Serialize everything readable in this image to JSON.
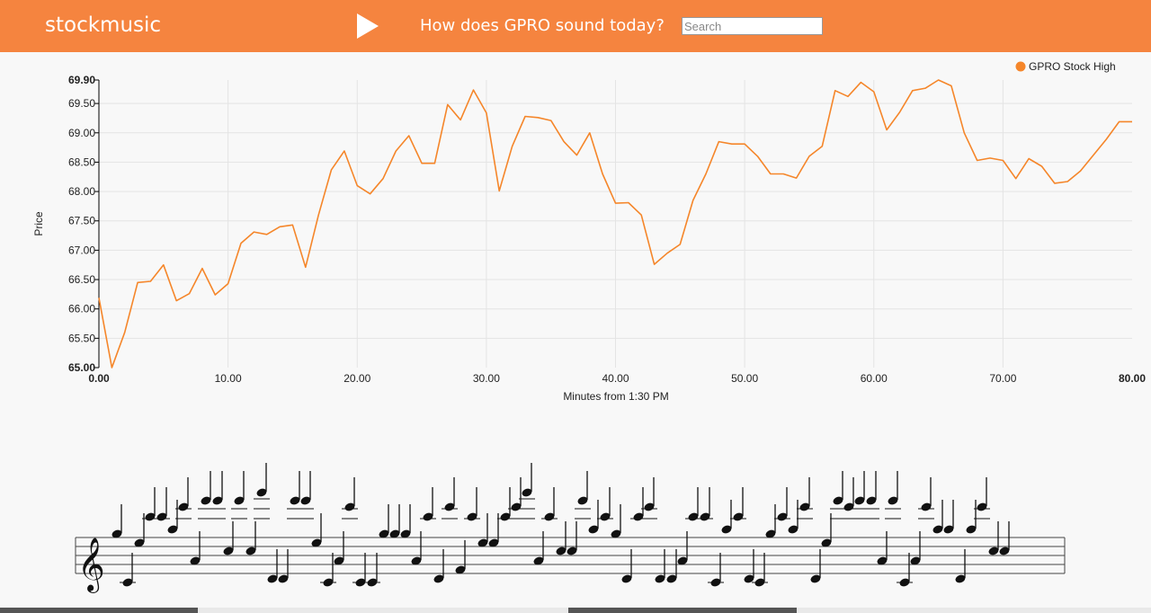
{
  "header": {
    "brand": "stockmusic",
    "headline": "How does GPRO sound today?",
    "search_placeholder": "Search"
  },
  "colors": {
    "brand": "#f5843f",
    "series": "#f5862a",
    "grid": "#e4e4e4",
    "notes": "#111111"
  },
  "icons": {
    "play": "play-icon"
  },
  "chart_data": {
    "type": "line",
    "title": "",
    "xlabel": "Minutes from 1:30 PM",
    "ylabel": "Price",
    "xlim": [
      0,
      80
    ],
    "ylim": [
      65,
      69.9
    ],
    "x_ticks": [
      "0.00",
      "10.00",
      "20.00",
      "30.00",
      "40.00",
      "50.00",
      "60.00",
      "70.00",
      "80.00"
    ],
    "y_ticks": [
      "65.00",
      "65.50",
      "66.00",
      "66.50",
      "67.00",
      "67.50",
      "68.00",
      "68.50",
      "69.00",
      "69.50",
      "69.90"
    ],
    "grid": true,
    "legend": "top-right",
    "series": [
      {
        "name": "GPRO Stock High",
        "x": [
          0,
          1,
          2,
          3,
          4,
          5,
          6,
          7,
          8,
          9,
          10,
          11,
          12,
          13,
          14,
          15,
          16,
          17,
          18,
          19,
          20,
          21,
          22,
          23,
          24,
          25,
          26,
          27,
          28,
          29,
          30,
          31,
          32,
          33,
          34,
          35,
          36,
          37,
          38,
          39,
          40,
          41,
          42,
          43,
          44,
          45,
          46,
          47,
          48,
          49,
          50,
          51,
          52,
          53,
          54,
          55,
          56,
          57,
          58,
          59,
          60,
          61,
          62,
          63,
          64,
          65,
          66,
          67,
          68,
          69,
          70,
          71,
          72,
          73,
          74,
          75,
          76,
          77,
          78,
          79,
          80
        ],
        "values": [
          66.19,
          65.0,
          65.6,
          66.45,
          66.47,
          66.75,
          66.14,
          66.26,
          66.69,
          66.24,
          66.43,
          67.12,
          67.31,
          67.27,
          67.4,
          67.43,
          66.71,
          67.6,
          68.37,
          68.69,
          68.1,
          67.96,
          68.22,
          68.69,
          68.95,
          68.48,
          68.48,
          69.48,
          69.22,
          69.73,
          69.34,
          68.01,
          68.77,
          69.28,
          69.26,
          69.21,
          68.85,
          68.62,
          69.0,
          68.3,
          67.8,
          67.81,
          67.6,
          66.76,
          66.95,
          67.1,
          67.85,
          68.3,
          68.85,
          68.81,
          68.81,
          68.6,
          68.3,
          68.3,
          68.23,
          68.6,
          68.77,
          69.72,
          69.62,
          69.86,
          69.7,
          69.05,
          69.35,
          69.72,
          69.76,
          69.9,
          69.8,
          69.0,
          68.53,
          68.57,
          68.53,
          68.22,
          68.56,
          68.43,
          68.14,
          68.17,
          68.35,
          68.62,
          68.89,
          69.19,
          69.19
        ]
      }
    ]
  },
  "music": {
    "clef": "𝄞",
    "notes": [
      {
        "x": 130,
        "y": 594,
        "stem": "up",
        "ledgers": []
      },
      {
        "x": 142,
        "y": 648,
        "stem": "up",
        "ledgers": [
          648
        ]
      },
      {
        "x": 155,
        "y": 604,
        "stem": "up",
        "ledgers": []
      },
      {
        "x": 167,
        "y": 575,
        "stem": "up",
        "ledgers": [
          577
        ]
      },
      {
        "x": 180,
        "y": 575,
        "stem": "up",
        "ledgers": [
          577
        ]
      },
      {
        "x": 192,
        "y": 589,
        "stem": "up",
        "ledgers": []
      },
      {
        "x": 204,
        "y": 564,
        "stem": "up",
        "ledgers": [
          566,
          577
        ]
      },
      {
        "x": 217,
        "y": 624,
        "stem": "up",
        "ledgers": []
      },
      {
        "x": 229,
        "y": 557,
        "stem": "up",
        "ledgers": [
          566,
          577
        ]
      },
      {
        "x": 242,
        "y": 557,
        "stem": "up",
        "ledgers": [
          566,
          577
        ]
      },
      {
        "x": 254,
        "y": 613,
        "stem": "up",
        "ledgers": []
      },
      {
        "x": 266,
        "y": 557,
        "stem": "up",
        "ledgers": [
          566,
          577
        ]
      },
      {
        "x": 279,
        "y": 613,
        "stem": "up",
        "ledgers": []
      },
      {
        "x": 291,
        "y": 548,
        "stem": "up",
        "ledgers": [
          555,
          566,
          577
        ]
      },
      {
        "x": 303,
        "y": 644,
        "stem": "up",
        "ledgers": []
      },
      {
        "x": 315,
        "y": 644,
        "stem": "up",
        "ledgers": []
      },
      {
        "x": 328,
        "y": 557,
        "stem": "up",
        "ledgers": [
          566,
          577
        ]
      },
      {
        "x": 340,
        "y": 557,
        "stem": "up",
        "ledgers": [
          566,
          577
        ]
      },
      {
        "x": 352,
        "y": 604,
        "stem": "up",
        "ledgers": []
      },
      {
        "x": 365,
        "y": 648,
        "stem": "up",
        "ledgers": [
          648
        ]
      },
      {
        "x": 377,
        "y": 624,
        "stem": "up",
        "ledgers": []
      },
      {
        "x": 389,
        "y": 564,
        "stem": "up",
        "ledgers": [
          566,
          577
        ]
      },
      {
        "x": 401,
        "y": 648,
        "stem": "up",
        "ledgers": [
          648
        ]
      },
      {
        "x": 414,
        "y": 648,
        "stem": "up",
        "ledgers": [
          648
        ]
      },
      {
        "x": 427,
        "y": 594,
        "stem": "up",
        "ledgers": []
      },
      {
        "x": 439,
        "y": 594,
        "stem": "up",
        "ledgers": []
      },
      {
        "x": 451,
        "y": 594,
        "stem": "up",
        "ledgers": []
      },
      {
        "x": 463,
        "y": 624,
        "stem": "up",
        "ledgers": []
      },
      {
        "x": 476,
        "y": 575,
        "stem": "up",
        "ledgers": [
          577
        ]
      },
      {
        "x": 488,
        "y": 644,
        "stem": "up",
        "ledgers": []
      },
      {
        "x": 500,
        "y": 564,
        "stem": "up",
        "ledgers": [
          566,
          577
        ]
      },
      {
        "x": 512,
        "y": 634,
        "stem": "up",
        "ledgers": []
      },
      {
        "x": 525,
        "y": 575,
        "stem": "up",
        "ledgers": [
          577
        ]
      },
      {
        "x": 537,
        "y": 604,
        "stem": "up",
        "ledgers": []
      },
      {
        "x": 549,
        "y": 604,
        "stem": "up",
        "ledgers": []
      },
      {
        "x": 562,
        "y": 575,
        "stem": "up",
        "ledgers": [
          577
        ]
      },
      {
        "x": 574,
        "y": 564,
        "stem": "up",
        "ledgers": [
          566,
          577
        ]
      },
      {
        "x": 586,
        "y": 548,
        "stem": "up",
        "ledgers": [
          555,
          566,
          577
        ]
      },
      {
        "x": 599,
        "y": 624,
        "stem": "up",
        "ledgers": []
      },
      {
        "x": 611,
        "y": 575,
        "stem": "up",
        "ledgers": [
          577
        ]
      },
      {
        "x": 624,
        "y": 613,
        "stem": "up",
        "ledgers": []
      },
      {
        "x": 636,
        "y": 613,
        "stem": "up",
        "ledgers": []
      },
      {
        "x": 648,
        "y": 557,
        "stem": "up",
        "ledgers": [
          566,
          577
        ]
      },
      {
        "x": 660,
        "y": 589,
        "stem": "up",
        "ledgers": []
      },
      {
        "x": 673,
        "y": 575,
        "stem": "up",
        "ledgers": [
          577
        ]
      },
      {
        "x": 685,
        "y": 594,
        "stem": "up",
        "ledgers": []
      },
      {
        "x": 697,
        "y": 644,
        "stem": "up",
        "ledgers": []
      },
      {
        "x": 710,
        "y": 575,
        "stem": "up",
        "ledgers": [
          577
        ]
      },
      {
        "x": 722,
        "y": 564,
        "stem": "up",
        "ledgers": [
          566,
          577
        ]
      },
      {
        "x": 734,
        "y": 644,
        "stem": "up",
        "ledgers": []
      },
      {
        "x": 747,
        "y": 644,
        "stem": "up",
        "ledgers": []
      },
      {
        "x": 759,
        "y": 624,
        "stem": "up",
        "ledgers": []
      },
      {
        "x": 771,
        "y": 575,
        "stem": "up",
        "ledgers": [
          577
        ]
      },
      {
        "x": 784,
        "y": 575,
        "stem": "up",
        "ledgers": [
          577
        ]
      },
      {
        "x": 796,
        "y": 648,
        "stem": "up",
        "ledgers": [
          648
        ]
      },
      {
        "x": 808,
        "y": 589,
        "stem": "up",
        "ledgers": []
      },
      {
        "x": 821,
        "y": 575,
        "stem": "up",
        "ledgers": [
          577
        ]
      },
      {
        "x": 833,
        "y": 644,
        "stem": "up",
        "ledgers": []
      },
      {
        "x": 845,
        "y": 648,
        "stem": "up",
        "ledgers": [
          648
        ]
      },
      {
        "x": 857,
        "y": 594,
        "stem": "up",
        "ledgers": []
      },
      {
        "x": 870,
        "y": 575,
        "stem": "up",
        "ledgers": [
          577
        ]
      },
      {
        "x": 882,
        "y": 589,
        "stem": "up",
        "ledgers": []
      },
      {
        "x": 895,
        "y": 564,
        "stem": "up",
        "ledgers": [
          566,
          577
        ]
      },
      {
        "x": 907,
        "y": 644,
        "stem": "up",
        "ledgers": []
      },
      {
        "x": 919,
        "y": 604,
        "stem": "up",
        "ledgers": []
      },
      {
        "x": 932,
        "y": 557,
        "stem": "up",
        "ledgers": [
          566,
          577
        ]
      },
      {
        "x": 944,
        "y": 564,
        "stem": "up",
        "ledgers": [
          566,
          577
        ]
      },
      {
        "x": 956,
        "y": 557,
        "stem": "up",
        "ledgers": [
          566,
          577
        ]
      },
      {
        "x": 969,
        "y": 557,
        "stem": "up",
        "ledgers": [
          566,
          577
        ]
      },
      {
        "x": 981,
        "y": 624,
        "stem": "up",
        "ledgers": []
      },
      {
        "x": 993,
        "y": 557,
        "stem": "up",
        "ledgers": [
          566,
          577
        ]
      },
      {
        "x": 1006,
        "y": 648,
        "stem": "up",
        "ledgers": [
          648
        ]
      },
      {
        "x": 1018,
        "y": 624,
        "stem": "up",
        "ledgers": []
      },
      {
        "x": 1030,
        "y": 564,
        "stem": "up",
        "ledgers": [
          566,
          577
        ]
      },
      {
        "x": 1043,
        "y": 589,
        "stem": "up",
        "ledgers": []
      },
      {
        "x": 1055,
        "y": 589,
        "stem": "up",
        "ledgers": []
      },
      {
        "x": 1068,
        "y": 644,
        "stem": "up",
        "ledgers": []
      },
      {
        "x": 1080,
        "y": 589,
        "stem": "up",
        "ledgers": []
      },
      {
        "x": 1092,
        "y": 564,
        "stem": "up",
        "ledgers": [
          566,
          577
        ]
      },
      {
        "x": 1105,
        "y": 613,
        "stem": "up",
        "ledgers": []
      },
      {
        "x": 1117,
        "y": 613,
        "stem": "up",
        "ledgers": []
      }
    ]
  }
}
